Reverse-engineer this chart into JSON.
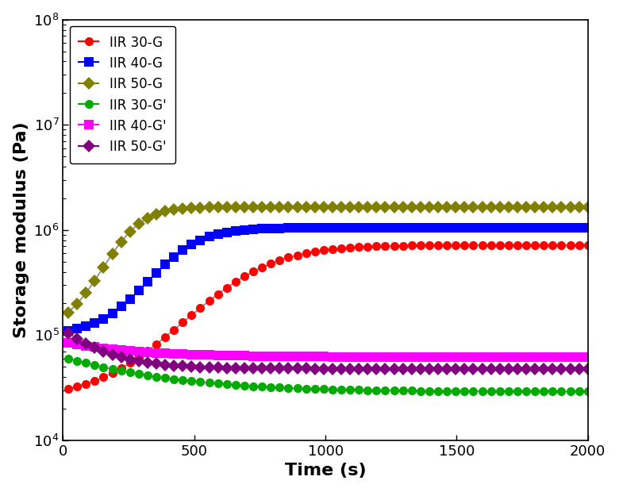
{
  "title": "",
  "xlabel": "Time (s)",
  "ylabel": "Storage modulus (Pa)",
  "xlim": [
    0,
    2000
  ],
  "ylim": [
    10000.0,
    100000000.0
  ],
  "xticks": [
    0,
    500,
    1000,
    1500,
    2000
  ],
  "series": [
    {
      "label": "IIR 30-G",
      "color": "#ff0000",
      "marker": "o",
      "ms": 8,
      "sigmoid_x0": 700,
      "sigmoid_k": 0.007,
      "y0": 25000.0,
      "yp": 720000.0,
      "type": "G"
    },
    {
      "label": "IIR 40-G",
      "color": "#0000ff",
      "marker": "s",
      "ms": 8,
      "sigmoid_x0": 430,
      "sigmoid_k": 0.011,
      "y0": 100000.0,
      "yp": 1050000.0,
      "type": "G"
    },
    {
      "label": "IIR 50-G",
      "color": "#808000",
      "marker": "D",
      "ms": 8,
      "sigmoid_x0": 240,
      "sigmoid_k": 0.015,
      "y0": 110000.0,
      "yp": 1650000.0,
      "type": "G"
    },
    {
      "label": "IIR 30-G'",
      "color": "#00aa00",
      "marker": "o",
      "ms": 8,
      "decay_k": 0.003,
      "y0": 60000.0,
      "yp": 29000.0,
      "type": "Gp"
    },
    {
      "label": "IIR 40-G'",
      "color": "#ff00ff",
      "marker": "s",
      "ms": 8,
      "decay_k": 0.004,
      "y0": 85000.0,
      "yp": 62000.0,
      "type": "Gp"
    },
    {
      "label": "IIR 50-G'",
      "color": "#800080",
      "marker": "D",
      "ms": 8,
      "decay_k": 0.007,
      "y0": 105000.0,
      "yp": 48000.0,
      "type": "Gp"
    }
  ],
  "legend_loc": "upper left",
  "legend_fontsize": 12,
  "tick_fontsize": 13,
  "label_fontsize": 16,
  "background_color": "#ffffff",
  "line_color": "#888888",
  "line_width": 1.2
}
